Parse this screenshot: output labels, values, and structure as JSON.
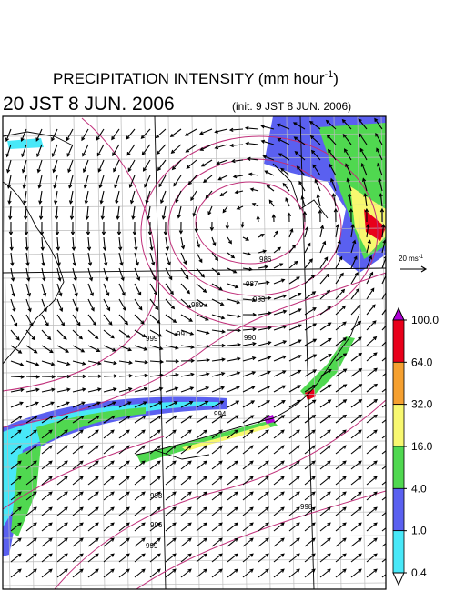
{
  "title": "PRECIPITATION INTENSITY (mm hour",
  "title_exponent": "-1",
  "title_close": ")",
  "valid_time": "20 JST 8 JUN. 2006",
  "init_time": "(init. 9 JST 8 JUN. 2006)",
  "reference_arrow": {
    "label": "20 ms",
    "exponent": "-1"
  },
  "isobar_labels": [
    "986",
    "987",
    "983",
    "989",
    "990",
    "991",
    "994",
    "999",
    "998",
    "993",
    "996",
    "999"
  ],
  "colorbar": {
    "ticks": [
      {
        "value": 100,
        "label": "100.0"
      },
      {
        "value": 64,
        "label": "64.0"
      },
      {
        "value": 32,
        "label": "32.0"
      },
      {
        "value": 16,
        "label": "16.0"
      },
      {
        "value": 4,
        "label": "4.0"
      },
      {
        "value": 1,
        "label": "1.0"
      },
      {
        "value": 0.4,
        "label": "0.4"
      }
    ],
    "colors": [
      "#e8001a",
      "#f5a030",
      "#f8f870",
      "#50d850",
      "#5a60f0",
      "#48e8f8"
    ],
    "over_color": "#b000d8",
    "under_color": "#ffffff"
  }
}
